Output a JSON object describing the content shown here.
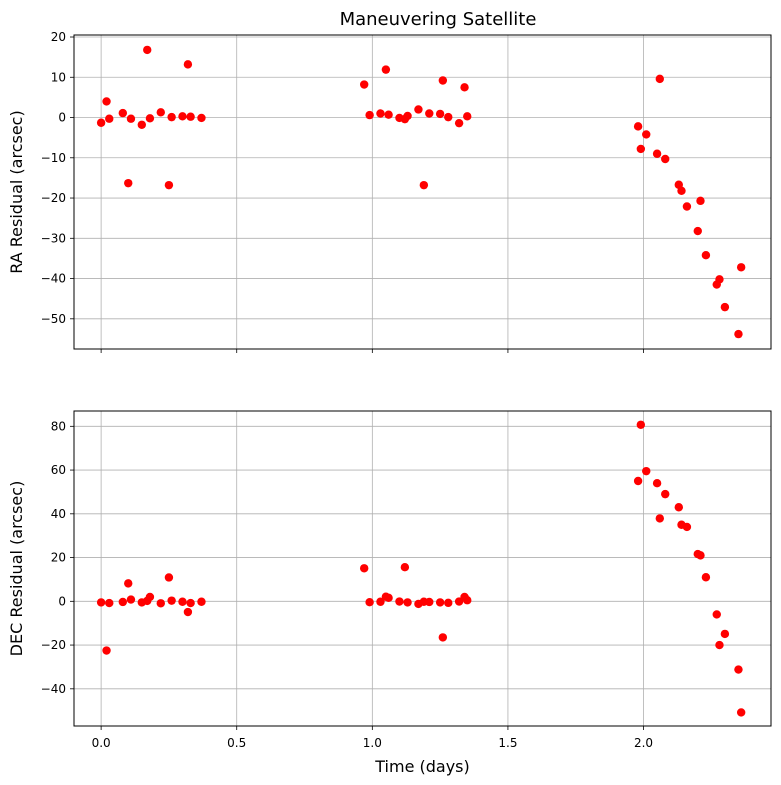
{
  "chart_data": [
    {
      "type": "scatter",
      "title": "Maneuvering Satellite",
      "xlabel": "",
      "ylabel": "RA Residual (arcsec)",
      "xlim": [
        -0.1,
        2.47
      ],
      "ylim": [
        -57.5,
        20.5
      ],
      "xticks": [
        0.0,
        0.5,
        1.0,
        1.5,
        2.0
      ],
      "xtick_labels": [],
      "yticks": [
        20,
        10,
        0,
        -10,
        -20,
        -30,
        -40,
        -50
      ],
      "ytick_labels": [
        "20",
        "10",
        "0",
        "−10",
        "−20",
        "−30",
        "−40",
        "−50"
      ],
      "grid": true,
      "marker_color": "#ff0000",
      "series": [
        {
          "points": [
            [
              0.0,
              -1.3
            ],
            [
              0.02,
              4.0
            ],
            [
              0.03,
              -0.3
            ],
            [
              0.08,
              1.1
            ],
            [
              0.1,
              -16.3
            ],
            [
              0.11,
              -0.3
            ],
            [
              0.15,
              -1.8
            ],
            [
              0.17,
              16.8
            ],
            [
              0.18,
              -0.2
            ],
            [
              0.22,
              1.3
            ],
            [
              0.25,
              -16.8
            ],
            [
              0.26,
              0.1
            ],
            [
              0.3,
              0.3
            ],
            [
              0.32,
              13.2
            ],
            [
              0.33,
              0.2
            ],
            [
              0.37,
              -0.1
            ],
            [
              0.97,
              8.2
            ],
            [
              0.99,
              0.6
            ],
            [
              1.03,
              1.0
            ],
            [
              1.05,
              11.9
            ],
            [
              1.06,
              0.7
            ],
            [
              1.1,
              -0.1
            ],
            [
              1.12,
              -0.4
            ],
            [
              1.13,
              0.4
            ],
            [
              1.17,
              2.0
            ],
            [
              1.19,
              -16.8
            ],
            [
              1.21,
              1.0
            ],
            [
              1.25,
              0.9
            ],
            [
              1.26,
              9.2
            ],
            [
              1.28,
              0.1
            ],
            [
              1.32,
              -1.4
            ],
            [
              1.34,
              7.5
            ],
            [
              1.35,
              0.3
            ],
            [
              1.98,
              -2.2
            ],
            [
              1.99,
              -7.8
            ],
            [
              2.01,
              -4.2
            ],
            [
              2.05,
              -9.0
            ],
            [
              2.06,
              9.6
            ],
            [
              2.08,
              -10.3
            ],
            [
              2.13,
              -16.7
            ],
            [
              2.14,
              -18.2
            ],
            [
              2.16,
              -22.1
            ],
            [
              2.2,
              -28.2
            ],
            [
              2.21,
              -20.7
            ],
            [
              2.23,
              -34.2
            ],
            [
              2.27,
              -41.5
            ],
            [
              2.28,
              -40.2
            ],
            [
              2.3,
              -47.1
            ],
            [
              2.35,
              -53.8
            ],
            [
              2.36,
              -37.2
            ]
          ]
        }
      ]
    },
    {
      "type": "scatter",
      "title": "",
      "xlabel": "Time (days)",
      "ylabel": "DEC Residual (arcsec)",
      "xlim": [
        -0.1,
        2.47
      ],
      "ylim": [
        -57.0,
        87.0
      ],
      "xticks": [
        0.0,
        0.5,
        1.0,
        1.5,
        2.0
      ],
      "xtick_labels": [
        "0.0",
        "0.5",
        "1.0",
        "1.5",
        "2.0"
      ],
      "yticks": [
        80,
        60,
        40,
        20,
        0,
        -20,
        -40
      ],
      "ytick_labels": [
        "80",
        "60",
        "40",
        "20",
        "0",
        "−20",
        "−40"
      ],
      "grid": true,
      "marker_color": "#ff0000",
      "series": [
        {
          "points": [
            [
              0.0,
              -0.5
            ],
            [
              0.02,
              -22.5
            ],
            [
              0.03,
              -0.8
            ],
            [
              0.08,
              -0.3
            ],
            [
              0.1,
              8.2
            ],
            [
              0.11,
              0.8
            ],
            [
              0.15,
              -0.5
            ],
            [
              0.17,
              0.2
            ],
            [
              0.18,
              2.0
            ],
            [
              0.22,
              -0.9
            ],
            [
              0.25,
              10.9
            ],
            [
              0.26,
              0.3
            ],
            [
              0.3,
              -0.2
            ],
            [
              0.32,
              -4.9
            ],
            [
              0.33,
              -0.8
            ],
            [
              0.37,
              -0.2
            ],
            [
              0.97,
              15.1
            ],
            [
              0.99,
              -0.4
            ],
            [
              1.03,
              -0.2
            ],
            [
              1.05,
              2.1
            ],
            [
              1.06,
              1.6
            ],
            [
              1.1,
              -0.1
            ],
            [
              1.12,
              15.6
            ],
            [
              1.13,
              -0.5
            ],
            [
              1.17,
              -1.2
            ],
            [
              1.19,
              -0.2
            ],
            [
              1.21,
              -0.3
            ],
            [
              1.25,
              -0.5
            ],
            [
              1.26,
              -16.5
            ],
            [
              1.28,
              -0.7
            ],
            [
              1.32,
              -0.1
            ],
            [
              1.34,
              2.0
            ],
            [
              1.35,
              0.5
            ],
            [
              1.98,
              55.0
            ],
            [
              1.99,
              80.7
            ],
            [
              2.01,
              59.5
            ],
            [
              2.05,
              54.0
            ],
            [
              2.06,
              37.9
            ],
            [
              2.08,
              49.0
            ],
            [
              2.13,
              43.0
            ],
            [
              2.14,
              35.0
            ],
            [
              2.16,
              34.0
            ],
            [
              2.2,
              21.6
            ],
            [
              2.21,
              21.0
            ],
            [
              2.23,
              11.0
            ],
            [
              2.27,
              -6.0
            ],
            [
              2.28,
              -20.0
            ],
            [
              2.3,
              -14.9
            ],
            [
              2.35,
              -31.2
            ],
            [
              2.36,
              -50.8
            ]
          ]
        }
      ]
    }
  ]
}
